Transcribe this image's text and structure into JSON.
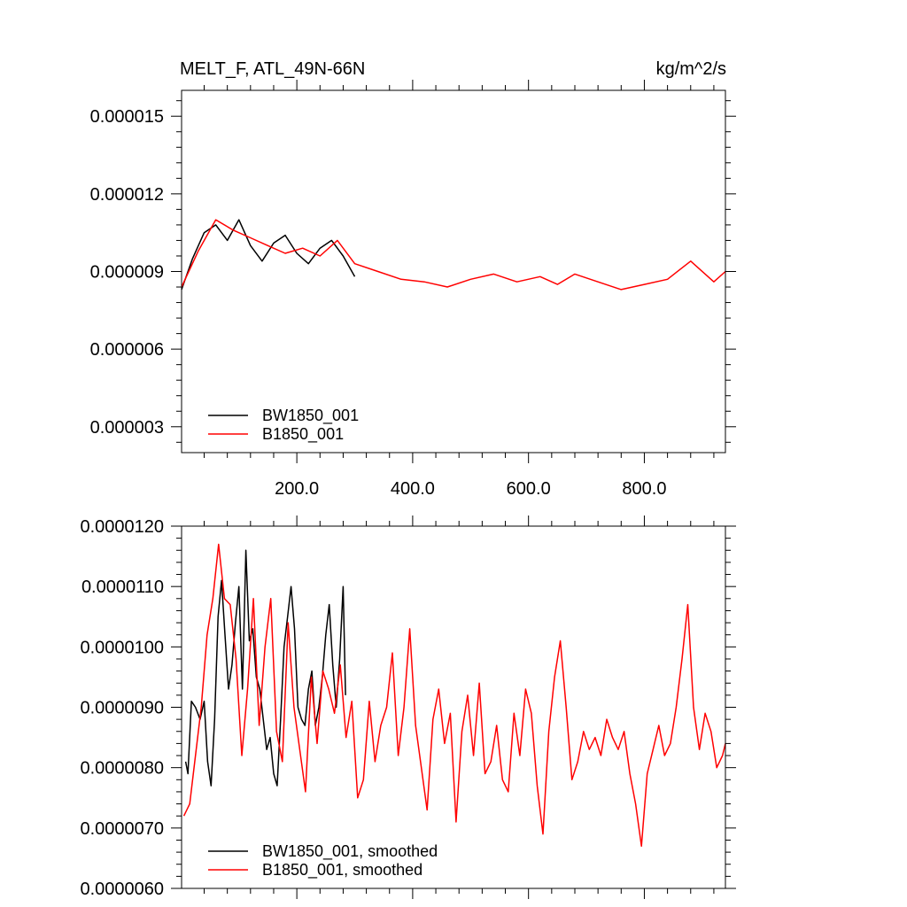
{
  "chart_data": [
    {
      "type": "line",
      "title": "MELT_F, ATL_49N-66N",
      "units": "kg/m^2/s",
      "xlim": [
        1,
        940
      ],
      "ylim": [
        2e-06,
        1.6e-05
      ],
      "x_ticks": [
        200,
        400,
        600,
        800
      ],
      "x_tick_labels": [
        "200.0",
        "400.0",
        "600.0",
        "800.0"
      ],
      "y_ticks": [
        3e-06,
        6e-06,
        9e-06,
        1.2e-05,
        1.5e-05
      ],
      "y_tick_labels": [
        "0.000003",
        "0.000006",
        "0.000009",
        "0.000012",
        "0.000015"
      ],
      "grid": false,
      "legend_position": "bottom-left",
      "series": [
        {
          "name": "BW1850_001",
          "color": "#000000",
          "x": [
            1,
            20,
            40,
            60,
            80,
            100,
            120,
            140,
            160,
            180,
            200,
            220,
            240,
            260,
            280,
            300
          ],
          "values": [
            8.3e-06,
            9.5e-06,
            1.05e-05,
            1.08e-05,
            1.02e-05,
            1.1e-05,
            1e-05,
            9.4e-06,
            1.01e-05,
            1.04e-05,
            9.7e-06,
            9.3e-06,
            9.9e-06,
            1.02e-05,
            9.6e-06,
            8.8e-06
          ]
        },
        {
          "name": "B1850_001",
          "color": "#ff0000",
          "x": [
            1,
            30,
            60,
            90,
            120,
            150,
            180,
            210,
            240,
            270,
            300,
            340,
            380,
            420,
            460,
            500,
            540,
            580,
            620,
            650,
            680,
            720,
            760,
            800,
            840,
            880,
            920,
            940
          ],
          "values": [
            8.4e-06,
            9.8e-06,
            1.1e-05,
            1.06e-05,
            1.03e-05,
            1e-05,
            9.7e-06,
            9.9e-06,
            9.6e-06,
            1.02e-05,
            9.3e-06,
            9e-06,
            8.7e-06,
            8.6e-06,
            8.4e-06,
            8.7e-06,
            8.9e-06,
            8.6e-06,
            8.8e-06,
            8.5e-06,
            8.9e-06,
            8.6e-06,
            8.3e-06,
            8.5e-06,
            8.7e-06,
            9.4e-06,
            8.6e-06,
            9e-06
          ]
        }
      ]
    },
    {
      "type": "line",
      "title": "",
      "xlim": [
        1,
        940
      ],
      "ylim": [
        6e-06,
        1.2e-05
      ],
      "y_ticks": [
        6e-06,
        7e-06,
        8e-06,
        9e-06,
        1e-05,
        1.1e-05,
        1.2e-05
      ],
      "y_tick_labels": [
        "0.0000060",
        "0.0000070",
        "0.0000080",
        "0.0000090",
        "0.0000100",
        "0.0000110",
        "0.0000120"
      ],
      "grid": false,
      "legend_position": "bottom-left",
      "series": [
        {
          "name": "BW1850_001, smoothed",
          "color": "#000000",
          "x": [
            8,
            12,
            18,
            25,
            33,
            40,
            46,
            52,
            58,
            64,
            70,
            76,
            82,
            88,
            94,
            100,
            106,
            112,
            118,
            124,
            130,
            136,
            142,
            148,
            154,
            160,
            166,
            172,
            178,
            184,
            190,
            196,
            202,
            208,
            214,
            220,
            226,
            232,
            238,
            244,
            250,
            256,
            262,
            268,
            274,
            280,
            284
          ],
          "values": [
            8.1e-06,
            7.9e-06,
            9.1e-06,
            9e-06,
            8.8e-06,
            9.1e-06,
            8.1e-06,
            7.7e-06,
            8.8e-06,
            1.05e-05,
            1.11e-05,
            1.02e-05,
            9.3e-06,
            9.7e-06,
            1.04e-05,
            1.1e-05,
            9.3e-06,
            1.16e-05,
            1.01e-05,
            1.03e-05,
            9.5e-06,
            9.3e-06,
            8.8e-06,
            8.3e-06,
            8.5e-06,
            7.9e-06,
            7.7e-06,
            8.8e-06,
            1e-05,
            1.05e-05,
            1.1e-05,
            1.03e-05,
            9e-06,
            8.8e-06,
            8.7e-06,
            9.3e-06,
            9.6e-06,
            8.7e-06,
            9e-06,
            9.5e-06,
            1.02e-05,
            1.07e-05,
            9.7e-06,
            9e-06,
            9.8e-06,
            1.1e-05,
            9.2e-06
          ]
        },
        {
          "name": "B1850_001, smoothed",
          "color": "#ff0000",
          "x": [
            5,
            15,
            25,
            35,
            45,
            55,
            65,
            75,
            85,
            95,
            105,
            115,
            125,
            135,
            145,
            155,
            165,
            175,
            185,
            195,
            205,
            215,
            225,
            235,
            245,
            255,
            265,
            275,
            285,
            295,
            305,
            315,
            325,
            335,
            345,
            355,
            365,
            375,
            385,
            395,
            405,
            415,
            425,
            435,
            445,
            455,
            465,
            475,
            485,
            495,
            505,
            515,
            525,
            535,
            545,
            555,
            565,
            575,
            585,
            595,
            605,
            615,
            625,
            635,
            645,
            655,
            665,
            675,
            685,
            695,
            705,
            715,
            725,
            735,
            745,
            755,
            765,
            775,
            785,
            795,
            805,
            815,
            825,
            835,
            845,
            855,
            865,
            875,
            885,
            895,
            905,
            915,
            925,
            935,
            940
          ],
          "values": [
            7.2e-06,
            7.4e-06,
            8.2e-06,
            9e-06,
            1.02e-05,
            1.08e-05,
            1.17e-05,
            1.08e-05,
            1.07e-05,
            9.8e-06,
            8.2e-06,
            9.3e-06,
            1.08e-05,
            8.7e-06,
            1e-05,
            1.08e-05,
            8.6e-06,
            8.1e-06,
            1.04e-05,
            9e-06,
            8.3e-06,
            7.6e-06,
            9.5e-06,
            8.4e-06,
            9.6e-06,
            9.3e-06,
            8.9e-06,
            9.7e-06,
            8.5e-06,
            9.1e-06,
            7.5e-06,
            7.8e-06,
            9.1e-06,
            8.1e-06,
            8.7e-06,
            9e-06,
            9.9e-06,
            8.2e-06,
            9e-06,
            1.03e-05,
            8.7e-06,
            8e-06,
            7.3e-06,
            8.8e-06,
            9.3e-06,
            8.4e-06,
            8.9e-06,
            7.1e-06,
            8.6e-06,
            9.2e-06,
            8.2e-06,
            9.4e-06,
            7.9e-06,
            8.1e-06,
            8.7e-06,
            7.8e-06,
            7.6e-06,
            8.9e-06,
            8.2e-06,
            9.3e-06,
            8.9e-06,
            7.7e-06,
            6.9e-06,
            8.6e-06,
            9.5e-06,
            1.01e-05,
            9e-06,
            7.8e-06,
            8.1e-06,
            8.6e-06,
            8.3e-06,
            8.5e-06,
            8.2e-06,
            8.8e-06,
            8.5e-06,
            8.3e-06,
            8.6e-06,
            7.9e-06,
            7.4e-06,
            6.7e-06,
            7.9e-06,
            8.3e-06,
            8.7e-06,
            8.2e-06,
            8.4e-06,
            9e-06,
            9.8e-06,
            1.07e-05,
            9e-06,
            8.3e-06,
            8.9e-06,
            8.6e-06,
            8e-06,
            8.2e-06,
            8.4e-06
          ]
        }
      ]
    }
  ]
}
